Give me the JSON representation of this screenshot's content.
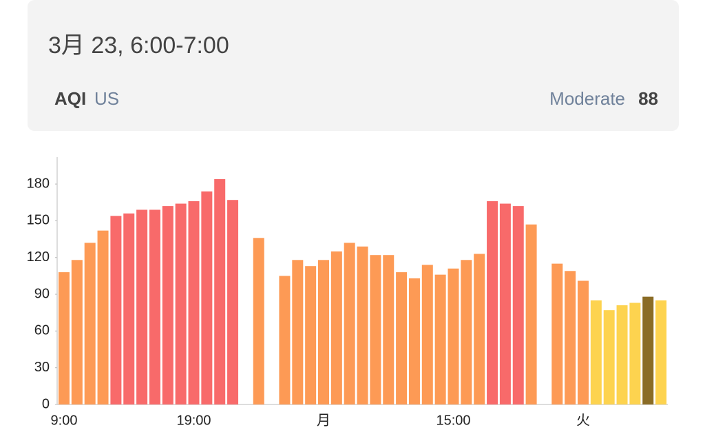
{
  "header": {
    "title": "3月 23, 6:00-7:00",
    "index": "AQI",
    "standard": "US",
    "level": "Moderate",
    "value": "88"
  },
  "chart_data": {
    "type": "bar",
    "categories": [
      "9:00",
      null,
      null,
      null,
      null,
      null,
      null,
      null,
      null,
      null,
      "19:00",
      null,
      null,
      null,
      null,
      null,
      null,
      null,
      null,
      null,
      "月",
      null,
      null,
      null,
      null,
      null,
      null,
      null,
      null,
      null,
      "15:00",
      null,
      null,
      null,
      null,
      null,
      null,
      null,
      null,
      null,
      "火",
      null,
      null,
      null,
      null,
      null,
      null
    ],
    "values": [
      108,
      118,
      132,
      142,
      154,
      156,
      159,
      159,
      162,
      164,
      166,
      174,
      184,
      167,
      null,
      136,
      null,
      105,
      118,
      113,
      118,
      125,
      132,
      129,
      122,
      122,
      108,
      103,
      114,
      106,
      111,
      118,
      123,
      166,
      164,
      162,
      147,
      null,
      115,
      109,
      101,
      85,
      77,
      81,
      83,
      88,
      85
    ],
    "colors": [
      "#fd9a55",
      "#fd9a55",
      "#fd9a55",
      "#fd9a55",
      "#f86a6a",
      "#f86a6a",
      "#f86a6a",
      "#f86a6a",
      "#f86a6a",
      "#f86a6a",
      "#f86a6a",
      "#f86a6a",
      "#f86a6a",
      "#f86a6a",
      null,
      "#fd9a55",
      null,
      "#fd9a55",
      "#fd9a55",
      "#fd9a55",
      "#fd9a55",
      "#fd9a55",
      "#fd9a55",
      "#fd9a55",
      "#fd9a55",
      "#fd9a55",
      "#fd9a55",
      "#fd9a55",
      "#fd9a55",
      "#fd9a55",
      "#fd9a55",
      "#fd9a55",
      "#fd9a55",
      "#f86a6a",
      "#f86a6a",
      "#f86a6a",
      "#fd9a55",
      null,
      "#fd9a55",
      "#fd9a55",
      "#fd9a55",
      "#fdd34f",
      "#fdd34f",
      "#fdd34f",
      "#fdd34f",
      "#8a6c26",
      "#fdd34f"
    ],
    "ylim": [
      0,
      202
    ],
    "yticks": [
      0,
      30,
      60,
      90,
      120,
      150,
      180
    ]
  }
}
